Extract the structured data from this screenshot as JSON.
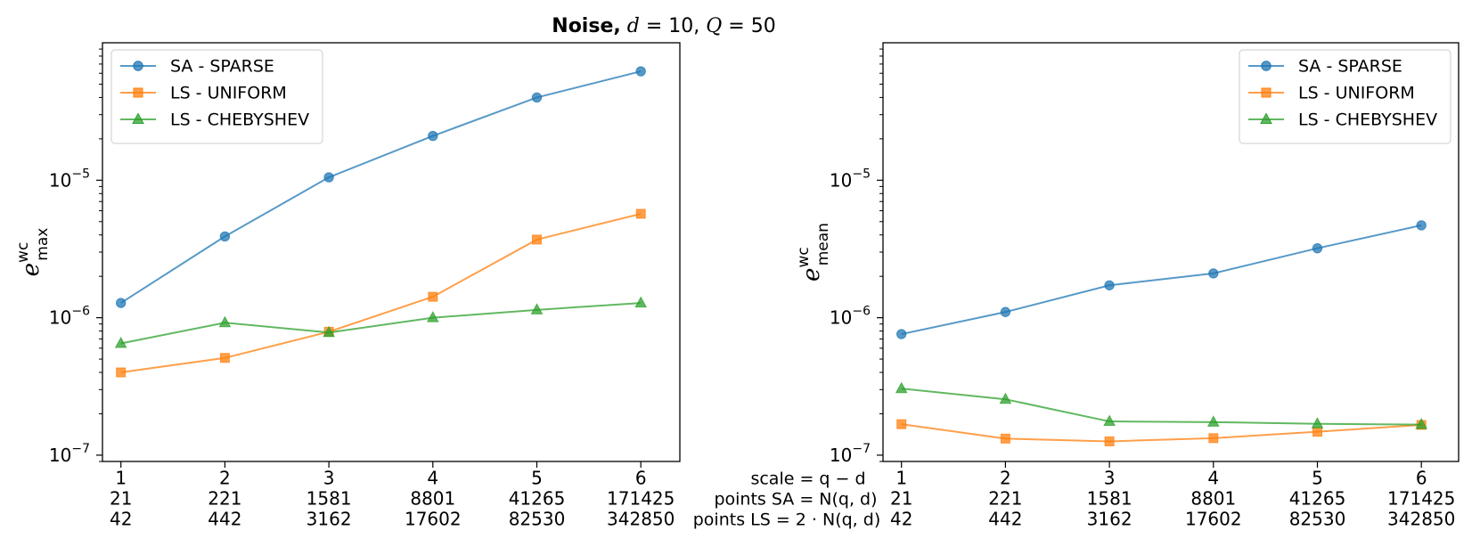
{
  "chart_data": {
    "figure_title": {
      "bold": "Noise,",
      "rest_parts": [
        " ",
        "d",
        " = 10, ",
        "Q",
        " = 50"
      ]
    },
    "shared_x_rows": {
      "scale": [
        "1",
        "2",
        "3",
        "4",
        "5",
        "6"
      ],
      "points_sa": [
        "21",
        "221",
        "1581",
        "8801",
        "41265",
        "171425"
      ],
      "points_ls": [
        "42",
        "442",
        "3162",
        "17602",
        "82530",
        "342850"
      ],
      "row_labels": [
        "scale = q − d",
        "points SA = N(q, d)",
        "points LS = 2 · N(q, d)"
      ]
    },
    "charts": [
      {
        "type": "line",
        "yscale": "log",
        "ylim": [
          9e-08,
          0.0001
        ],
        "ylabel": {
          "base": "e",
          "sup": "wc",
          "sub": "max"
        },
        "yticks": [
          {
            "value": 1e-07,
            "label": "10",
            "exp": "−7"
          },
          {
            "value": 1e-06,
            "label": "10",
            "exp": "−6"
          },
          {
            "value": 1e-05,
            "label": "10",
            "exp": "−5"
          }
        ],
        "legend_position": "top-left",
        "x": [
          1,
          2,
          3,
          4,
          5,
          6
        ],
        "series": [
          {
            "name": "SA - SPARSE",
            "color": "#1f77b4",
            "marker": "circle",
            "values": [
              1.28e-06,
              3.9e-06,
              1.05e-05,
              2.1e-05,
              4e-05,
              6.2e-05
            ]
          },
          {
            "name": "LS - UNIFORM",
            "color": "#ff7f0e",
            "marker": "square",
            "values": [
              4e-07,
              5.1e-07,
              7.9e-07,
              1.42e-06,
              3.7e-06,
              5.7e-06
            ]
          },
          {
            "name": "LS - CHEBYSHEV",
            "color": "#2ca02c",
            "marker": "triangle",
            "values": [
              6.5e-07,
              9.2e-07,
              7.8e-07,
              1e-06,
              1.14e-06,
              1.28e-06
            ]
          }
        ]
      },
      {
        "type": "line",
        "yscale": "log",
        "ylim": [
          9e-08,
          0.0001
        ],
        "ylabel": {
          "base": "e",
          "sup": "wc",
          "sub": "mean"
        },
        "yticks": [
          {
            "value": 1e-07,
            "label": "10",
            "exp": "−7"
          },
          {
            "value": 1e-06,
            "label": "10",
            "exp": "−6"
          },
          {
            "value": 1e-05,
            "label": "10",
            "exp": "−5"
          }
        ],
        "legend_position": "top-right",
        "x": [
          1,
          2,
          3,
          4,
          5,
          6
        ],
        "series": [
          {
            "name": "SA - SPARSE",
            "color": "#1f77b4",
            "marker": "circle",
            "values": [
              7.6e-07,
              1.1e-06,
              1.72e-06,
              2.1e-06,
              3.2e-06,
              4.7e-06
            ]
          },
          {
            "name": "LS - UNIFORM",
            "color": "#ff7f0e",
            "marker": "square",
            "values": [
              1.68e-07,
              1.32e-07,
              1.26e-07,
              1.33e-07,
              1.48e-07,
              1.66e-07
            ]
          },
          {
            "name": "LS - CHEBYSHEV",
            "color": "#2ca02c",
            "marker": "triangle",
            "values": [
              3.05e-07,
              2.55e-07,
              1.76e-07,
              1.74e-07,
              1.69e-07,
              1.67e-07
            ]
          }
        ]
      }
    ]
  }
}
